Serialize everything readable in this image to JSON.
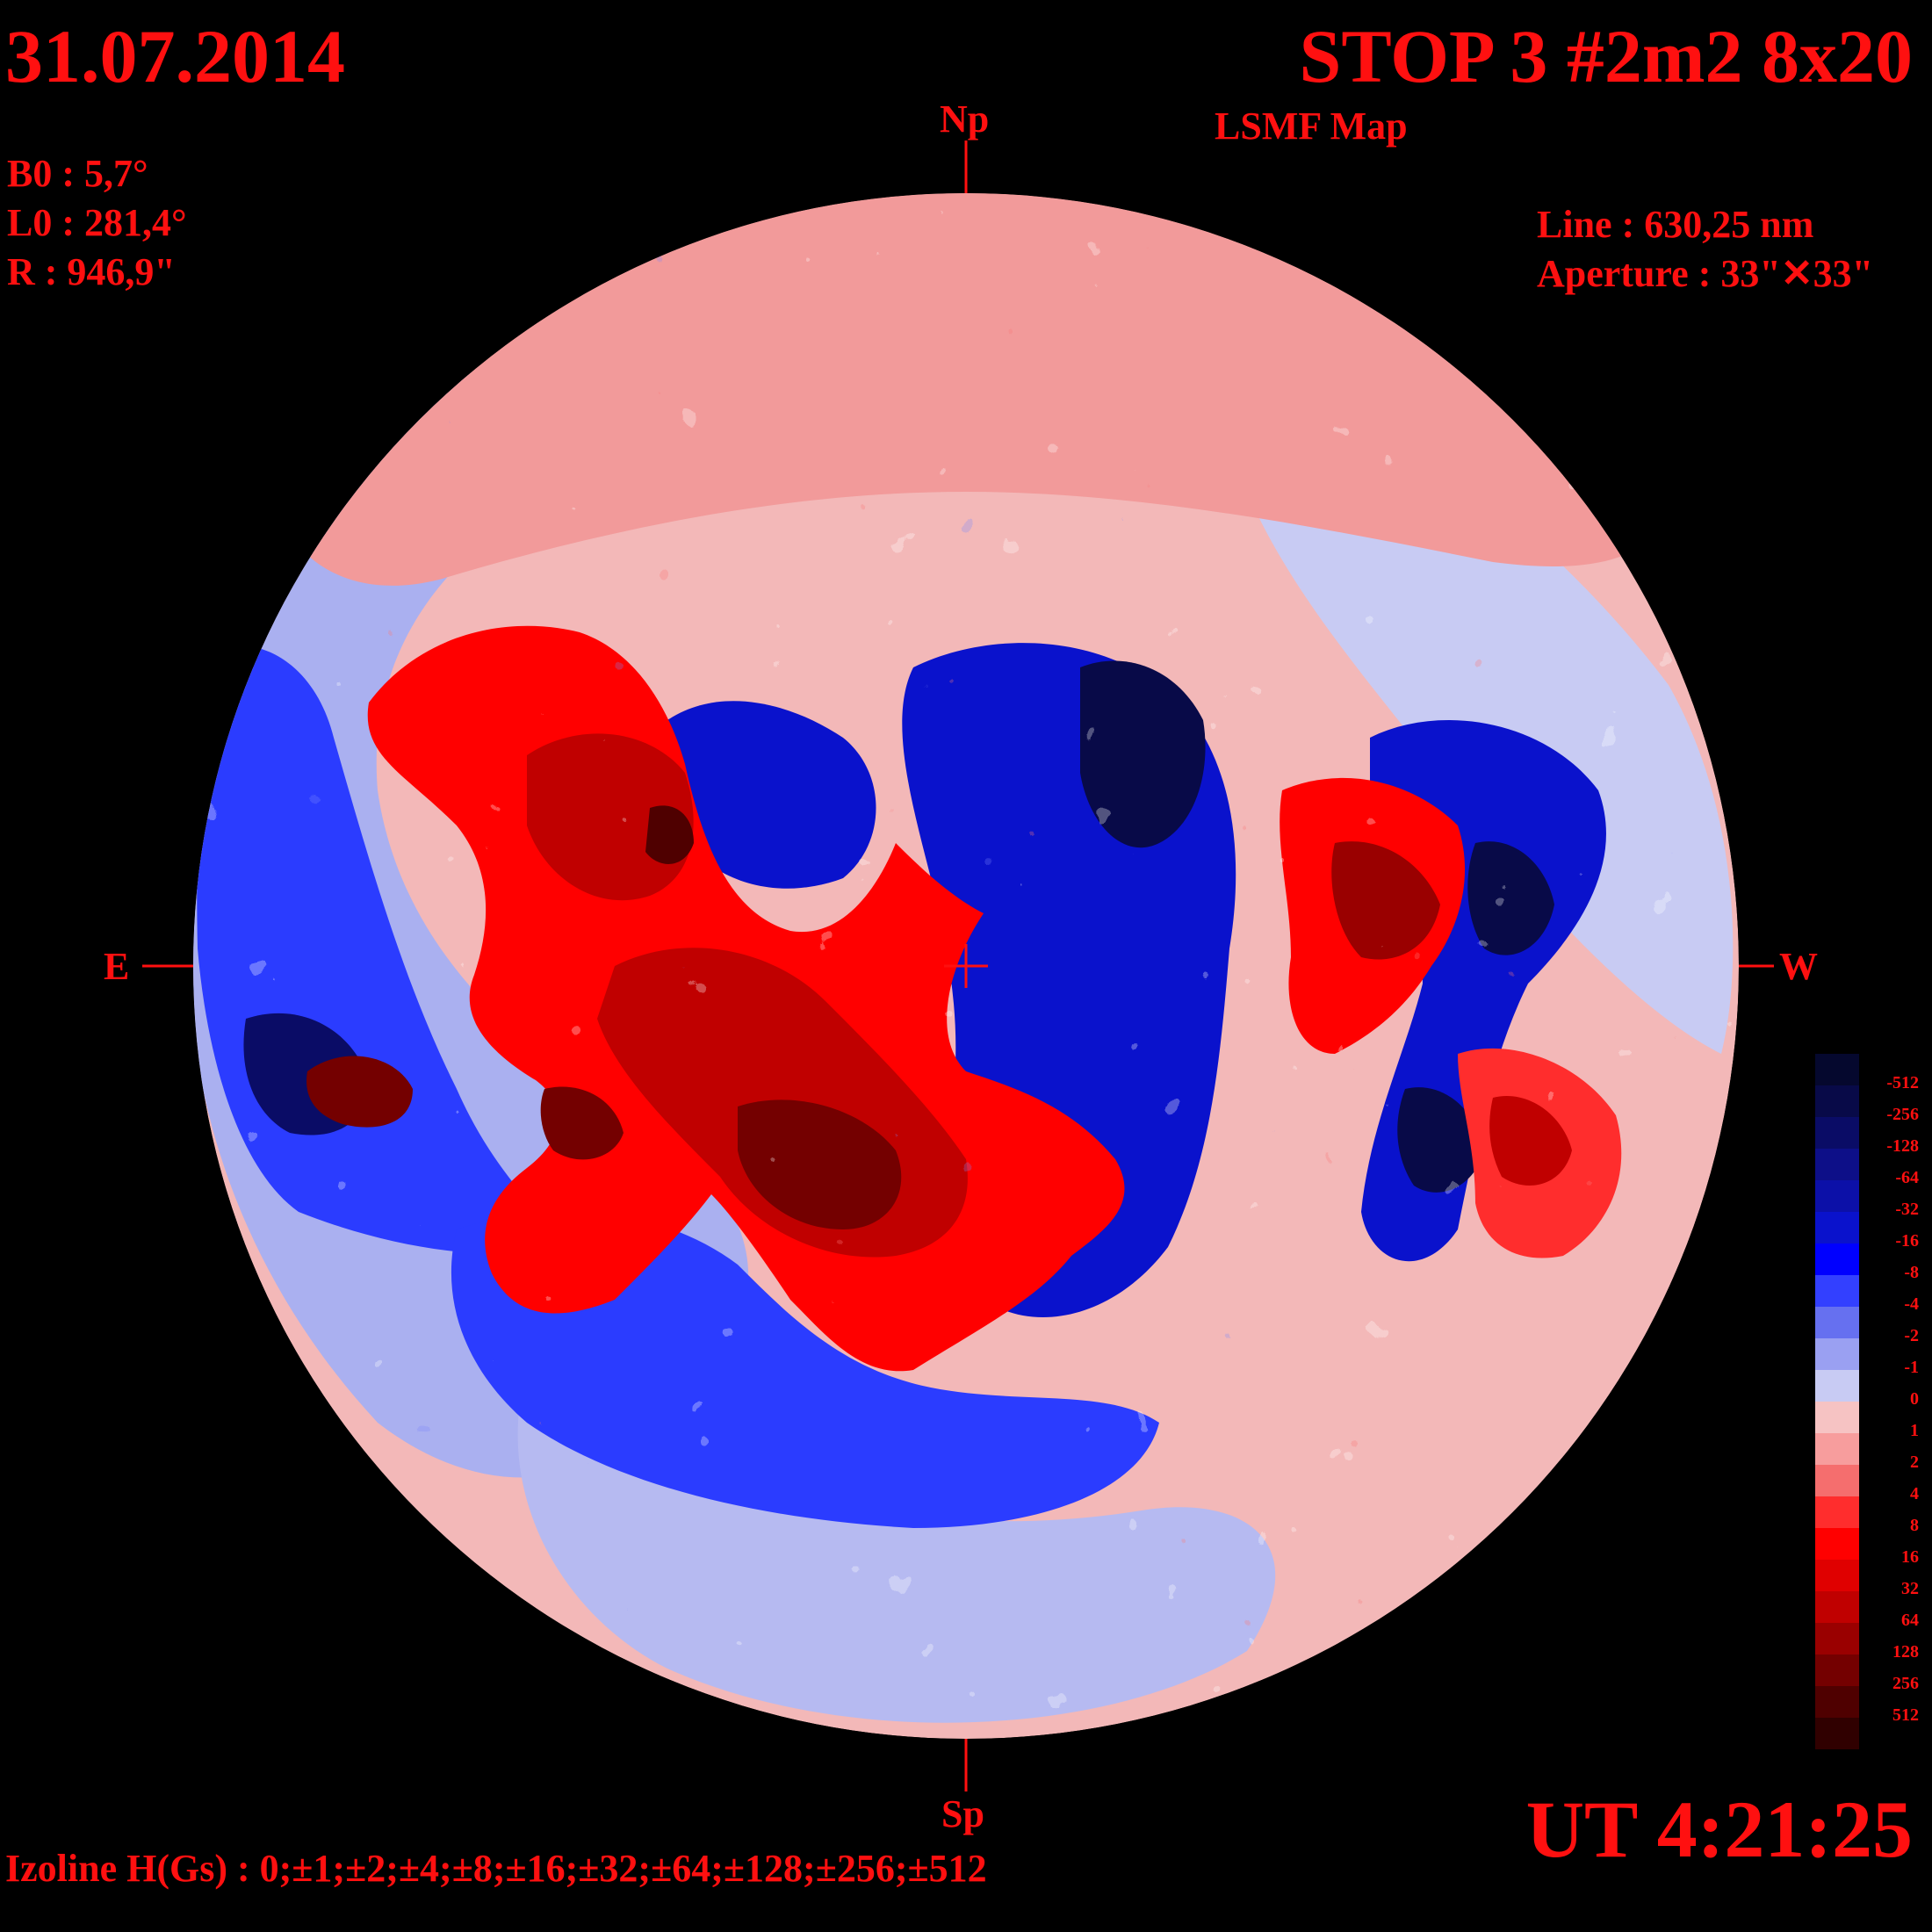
{
  "header": {
    "date": "31.07.2014",
    "title": "STOP 3 #2m2 8x20",
    "subtitle": "LSMF  Map"
  },
  "params": {
    "b0": "B0 : 5,7°",
    "l0": "L0 : 281,4°",
    "r": "R  : 946,9\"",
    "line": "Line :  630,25 nm",
    "aperture": "Aperture : 33\"✕33\""
  },
  "orientation": {
    "north": "Np",
    "south": "Sp",
    "east": "E",
    "west": "W"
  },
  "time": "UT 4:21:25",
  "izoline": "Izoline H(Gs) : 0;±1;±2;±4;±8;±16;±32;±64;±128;±256;±512",
  "legend": {
    "levels": [
      "-512",
      "-256",
      "-128",
      "-64",
      "-32",
      "-16",
      "-8",
      "-4",
      "-2",
      "-1",
      "0",
      "1",
      "2",
      "4",
      "8",
      "16",
      "32",
      "64",
      "128",
      "256",
      "512"
    ],
    "colors": [
      "#05082e",
      "#080a48",
      "#0a0c66",
      "#0d0f88",
      "#0c10a8",
      "#0a12cc",
      "#0000ff",
      "#3340ff",
      "#6670f0",
      "#9aa0f2",
      "#c8cbf3",
      "#f6c3c3",
      "#f79d9d",
      "#f56e6e",
      "#ff2d2d",
      "#ff0000",
      "#e00000",
      "#c00000",
      "#9a0000",
      "#740000",
      "#4f0000",
      "#300000"
    ]
  },
  "colors": {
    "text": "#ff1010",
    "background": "#000000",
    "contour": "#ffffff"
  }
}
